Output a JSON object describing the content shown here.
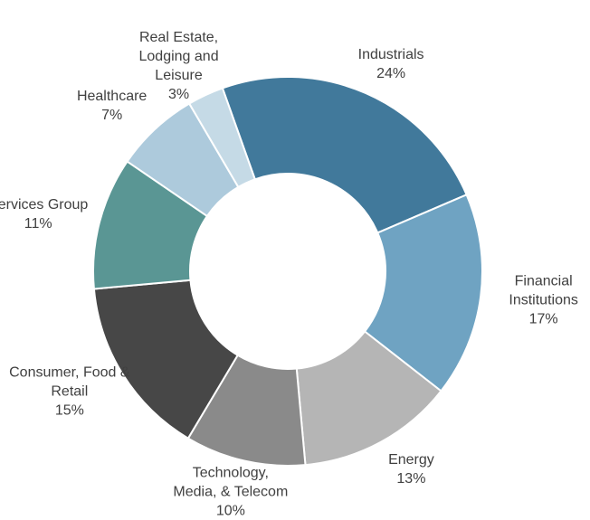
{
  "chart_data": {
    "type": "donut",
    "categories": [
      "Industrials",
      "Financial Institutions",
      "Energy",
      "Technology, Media, & Telecom",
      "Consumer, Food & Retail",
      "Services Group",
      "Healthcare",
      "Real Estate, Lodging and Leisure"
    ],
    "values": [
      24,
      17,
      13,
      10,
      15,
      11,
      7,
      3
    ],
    "value_labels": [
      "24%",
      "17%",
      "13%",
      "10%",
      "15%",
      "11%",
      "7%",
      "3%"
    ],
    "colors": [
      "#41799b",
      "#6fa3c2",
      "#b5b5b5",
      "#8a8a8a",
      "#474747",
      "#5a9694",
      "#adcadc",
      "#c5dae6"
    ]
  }
}
